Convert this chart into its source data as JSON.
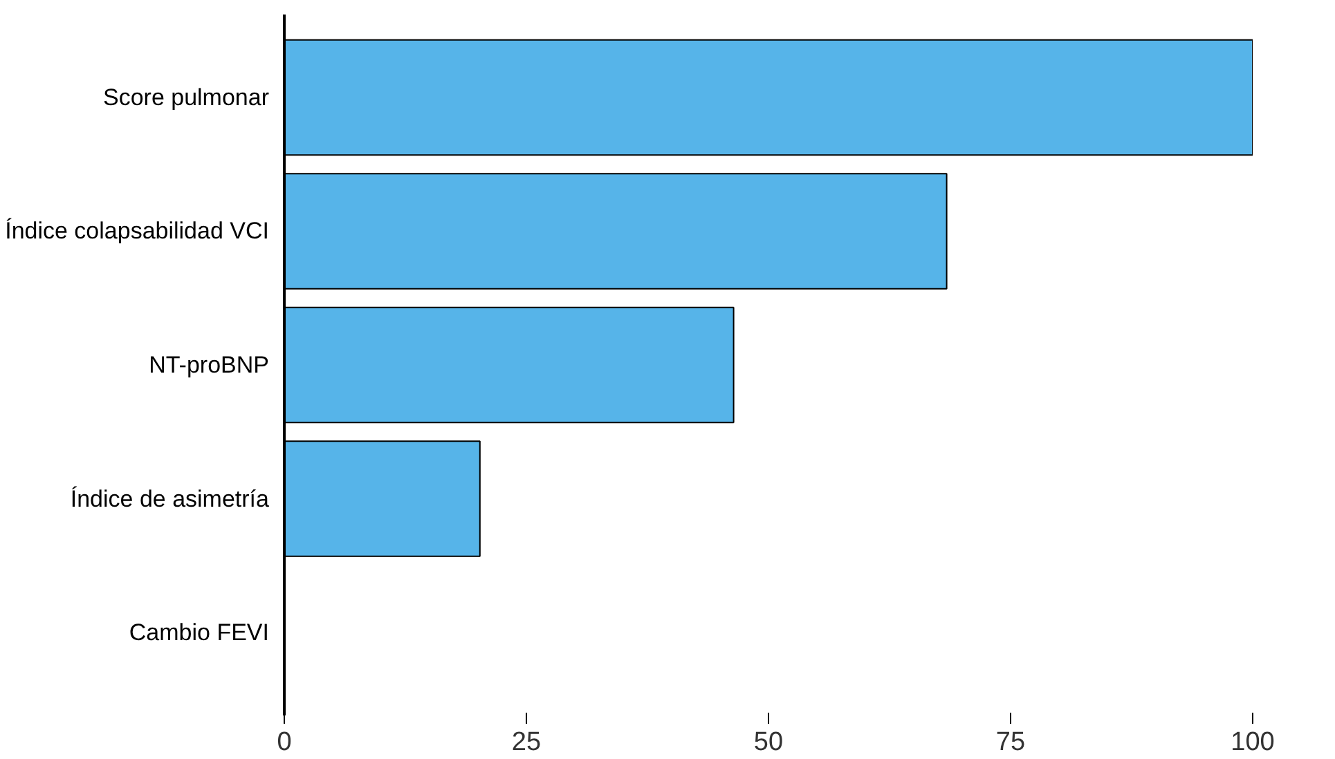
{
  "chart_data": {
    "type": "bar",
    "orientation": "horizontal",
    "categories": [
      "Score pulmonar",
      "Índice colapsabilidad VCI",
      "NT-proBNP",
      "Índice de asimetría",
      "Cambio FEVI"
    ],
    "values": [
      100,
      68.4,
      46.4,
      20.2,
      0
    ],
    "color": "#56b4e9",
    "xlim": [
      0,
      100
    ],
    "xticks": [
      0,
      25,
      50,
      75,
      100
    ],
    "grid": false
  }
}
